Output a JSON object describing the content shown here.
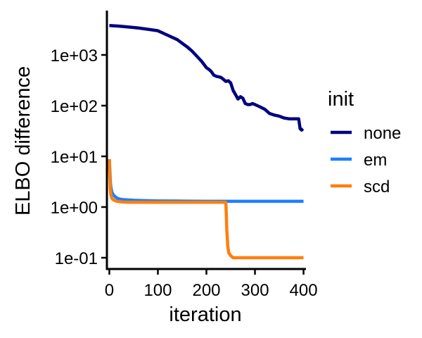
{
  "chart_data": {
    "type": "line",
    "xlabel": "iteration",
    "ylabel": "ELBO difference",
    "xlim": [
      -5,
      405
    ],
    "ylim": [
      0.06,
      7500
    ],
    "y_scale": "log",
    "x_ticks": [
      0,
      100,
      200,
      300,
      400
    ],
    "x_tick_labels": [
      "0",
      "100",
      "200",
      "300",
      "400"
    ],
    "y_ticks": [
      0.1,
      1,
      10,
      100,
      1000
    ],
    "y_tick_labels": [
      "1e-01",
      "1e+00",
      "1e+01",
      "1e+02",
      "1e+03"
    ],
    "grid": false,
    "legend_title": "init",
    "legend_position": "right",
    "series": [
      {
        "name": "none",
        "color": "#00007F",
        "x": [
          0,
          20,
          40,
          60,
          80,
          100,
          120,
          140,
          150,
          160,
          170,
          180,
          190,
          200,
          205,
          210,
          215,
          220,
          225,
          230,
          235,
          240,
          245,
          250,
          255,
          260,
          265,
          270,
          275,
          280,
          285,
          290,
          295,
          300,
          310,
          320,
          330,
          340,
          350,
          360,
          370,
          380,
          390,
          393,
          396,
          399
        ],
        "values": [
          3800,
          3700,
          3550,
          3400,
          3200,
          3000,
          2450,
          2000,
          1700,
          1450,
          1200,
          950,
          750,
          560,
          520,
          470,
          400,
          380,
          370,
          360,
          330,
          300,
          310,
          280,
          200,
          165,
          135,
          150,
          140,
          110,
          105,
          105,
          110,
          105,
          95,
          85,
          70,
          65,
          62,
          57,
          55,
          55,
          55,
          35,
          33,
          35
        ]
      },
      {
        "name": "em",
        "color": "#1E7FFF",
        "x": [
          0,
          1,
          2,
          3,
          5,
          8,
          12,
          16,
          20,
          25,
          30,
          40,
          50,
          70,
          100,
          150,
          200,
          250,
          300,
          350,
          400
        ],
        "values": [
          8.8,
          5.5,
          3.3,
          2.5,
          2.0,
          1.75,
          1.6,
          1.5,
          1.45,
          1.42,
          1.4,
          1.38,
          1.36,
          1.34,
          1.32,
          1.31,
          1.3,
          1.3,
          1.3,
          1.3,
          1.3
        ]
      },
      {
        "name": "scd",
        "color": "#FF7F0E",
        "x": [
          0,
          1,
          2,
          3,
          5,
          8,
          12,
          16,
          20,
          25,
          30,
          40,
          60,
          100,
          150,
          200,
          239,
          240,
          241,
          242,
          244,
          246,
          250,
          255,
          260,
          270,
          300,
          350,
          400
        ],
        "values": [
          8.8,
          4.2,
          2.3,
          1.8,
          1.5,
          1.4,
          1.33,
          1.3,
          1.28,
          1.26,
          1.25,
          1.24,
          1.24,
          1.24,
          1.24,
          1.24,
          1.24,
          1.2,
          0.7,
          0.35,
          0.17,
          0.125,
          0.11,
          0.1,
          0.1,
          0.1,
          0.1,
          0.1,
          0.1
        ]
      }
    ]
  }
}
